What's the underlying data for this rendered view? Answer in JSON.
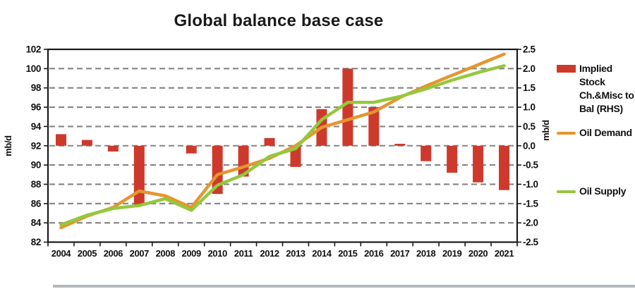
{
  "page": {
    "title": "Global balance base case"
  },
  "left_axis": {
    "title": "mb/d",
    "ticks": [
      "102",
      "100",
      "98",
      "96",
      "94",
      "92",
      "90",
      "88",
      "86",
      "84",
      "82"
    ]
  },
  "right_axis": {
    "title": "mb/d",
    "ticks": [
      "2.5",
      "2.0",
      "1.5",
      "1.0",
      "0.5",
      "0.0",
      "-0.5",
      "-1.0",
      "-1.5",
      "-2.0",
      "-2.5"
    ]
  },
  "legend": {
    "items": [
      {
        "label": "Implied Stock Ch.&Misc to Bal (RHS)",
        "swatch": "bar",
        "color": "#cd3a2c"
      },
      {
        "label": "Oil Demand",
        "swatch": "line",
        "color": "#e6952f"
      },
      {
        "label": "Oil Supply",
        "swatch": "line",
        "color": "#94c83d"
      }
    ]
  },
  "colors": {
    "bar_red": "#cd3a2c",
    "demand_orange": "#e6952f",
    "supply_green": "#94c83d",
    "grid_gray": "#848484",
    "axis_black": "#1a1a1a",
    "bottom_rule_gray": "#b4b7bb"
  },
  "chart_data": {
    "type": "combo",
    "title": "Global balance base case",
    "categories": [
      "2004",
      "2005",
      "2006",
      "2007",
      "2008",
      "2009",
      "2010",
      "2011",
      "2012",
      "2013",
      "2014",
      "2015",
      "2016",
      "2017",
      "2018",
      "2019",
      "2020",
      "2021"
    ],
    "series": [
      {
        "name": "Implied Stock Ch.&Misc to Bal (RHS)",
        "type": "bar",
        "axis": "right",
        "color": "#cd3a2c",
        "values": [
          0.3,
          0.15,
          -0.15,
          -1.55,
          0,
          -0.2,
          -1.25,
          -0.8,
          0.2,
          -0.55,
          0.95,
          2.0,
          1.0,
          0.05,
          -0.4,
          -0.7,
          -0.95,
          -1.15
        ]
      },
      {
        "name": "Oil Demand",
        "type": "line",
        "axis": "left",
        "color": "#e6952f",
        "values": [
          83.5,
          84.7,
          85.6,
          87.3,
          86.8,
          85.6,
          89.0,
          89.8,
          90.7,
          92.0,
          93.9,
          94.7,
          95.5,
          97.0,
          98.2,
          99.3,
          100.4,
          101.5
        ]
      },
      {
        "name": "Oil Supply",
        "type": "line",
        "axis": "left",
        "color": "#94c83d",
        "values": [
          83.8,
          84.8,
          85.5,
          85.8,
          86.5,
          85.3,
          87.9,
          89.0,
          90.9,
          91.7,
          94.7,
          96.5,
          96.5,
          97.1,
          97.9,
          98.8,
          99.6,
          100.3
        ]
      }
    ],
    "left_ylabel": "mb/d",
    "right_ylabel": "mb/d",
    "left_ylim": [
      82,
      102
    ],
    "right_ylim": [
      -2.5,
      2.5
    ],
    "bar_baseline_right_axis": 0.0,
    "grid": "horizontal dashed, every 2 units (left) / 0.5 units (right)",
    "legend_position": "right"
  }
}
